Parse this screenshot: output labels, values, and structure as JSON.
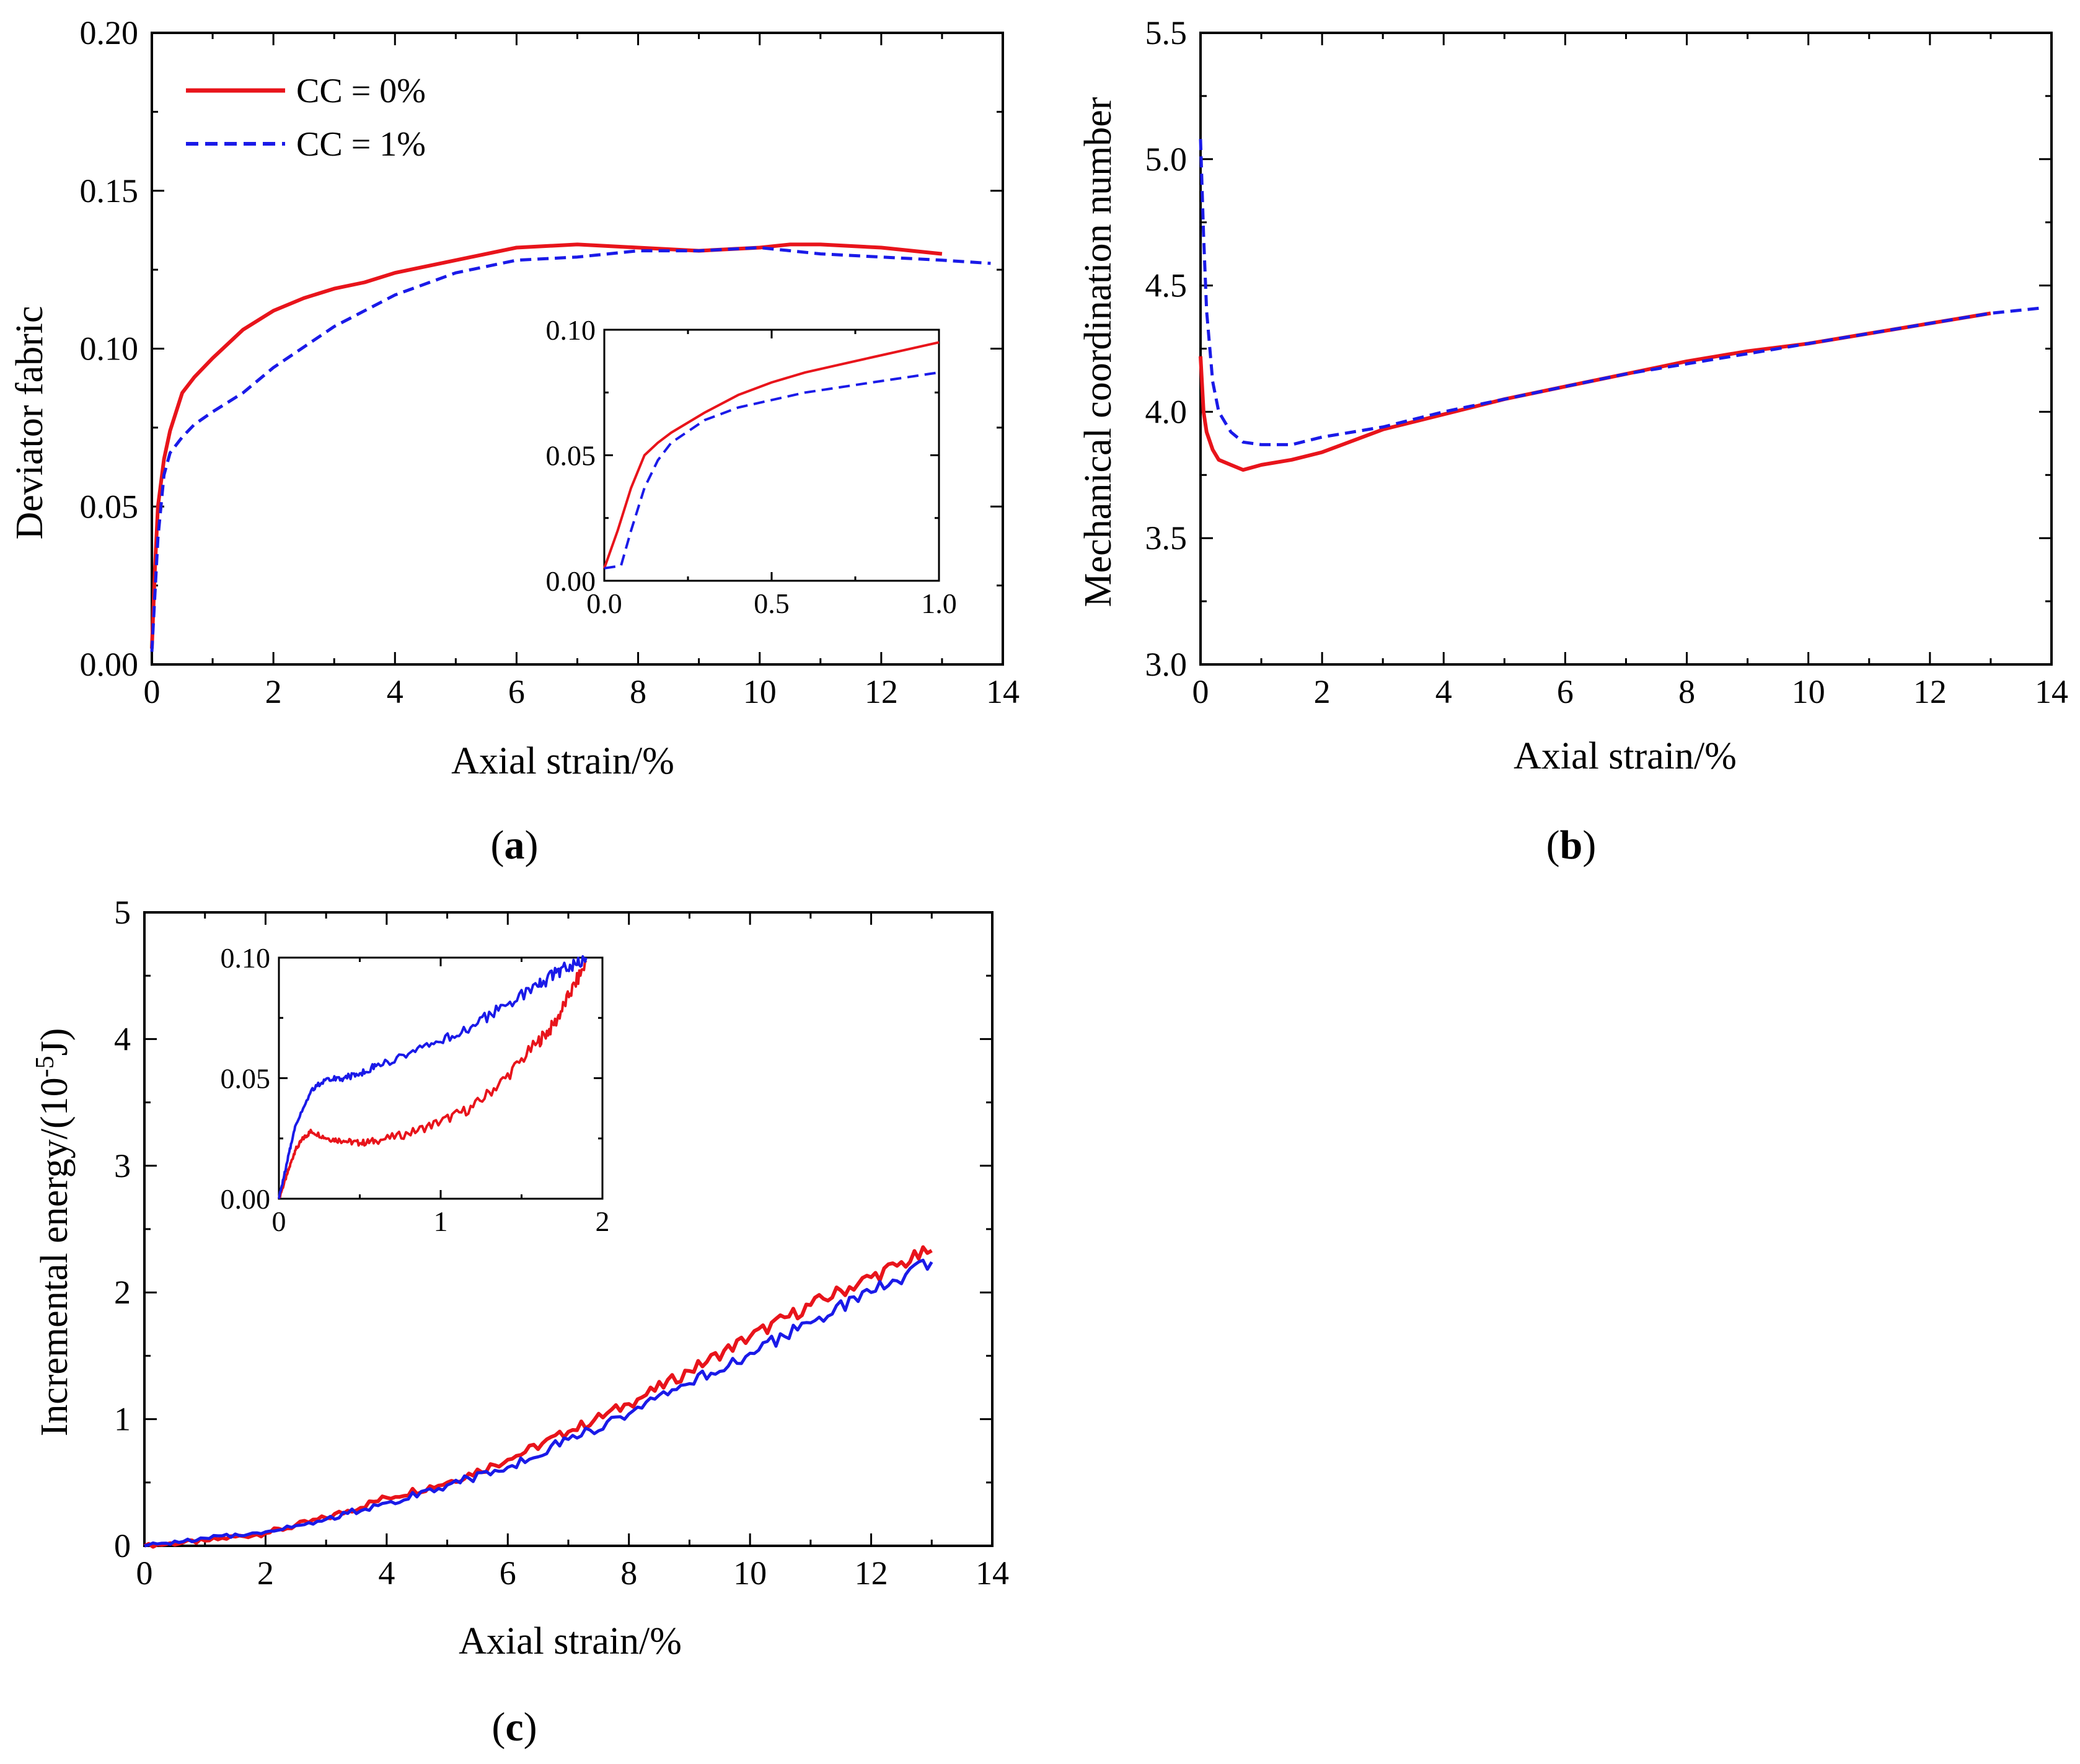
{
  "colors": {
    "cc0": "#e8141b",
    "cc1": "#1a1ae8",
    "axis": "#000000"
  },
  "legend": {
    "cc0_label": "CC = 0%",
    "cc1_label": "CC = 1%"
  },
  "panels": {
    "a": {
      "label_open": "(",
      "label_letter": "a",
      "label_close": ")"
    },
    "b": {
      "label_open": "(",
      "label_letter": "b",
      "label_close": ")"
    },
    "c": {
      "label_open": "(",
      "label_letter": "c",
      "label_close": ")"
    }
  },
  "chart_data": [
    {
      "id": "a",
      "type": "line",
      "title": "",
      "xlabel": "Axial strain/%",
      "ylabel": "Deviator fabric",
      "xlim": [
        0,
        14
      ],
      "ylim": [
        0,
        0.2
      ],
      "xticks": [
        "0",
        "2",
        "4",
        "6",
        "8",
        "10",
        "12",
        "14"
      ],
      "yticks": [
        "0.00",
        "0.05",
        "0.10",
        "0.15",
        "0.20"
      ],
      "legend_position": "top-left",
      "series": [
        {
          "name": "CC = 0%",
          "style": "solid",
          "x": [
            0,
            0.05,
            0.1,
            0.2,
            0.3,
            0.4,
            0.5,
            0.7,
            1.0,
            1.5,
            2.0,
            2.5,
            3.0,
            3.5,
            4.0,
            5.0,
            6.0,
            7.0,
            8.0,
            9.0,
            10.0,
            10.5,
            11.0,
            12.0,
            13.0
          ],
          "y": [
            0.005,
            0.03,
            0.05,
            0.065,
            0.074,
            0.08,
            0.086,
            0.091,
            0.097,
            0.106,
            0.112,
            0.116,
            0.119,
            0.121,
            0.124,
            0.128,
            0.132,
            0.133,
            0.132,
            0.131,
            0.132,
            0.133,
            0.133,
            0.132,
            0.13
          ]
        },
        {
          "name": "CC = 1%",
          "style": "dashed",
          "x": [
            0,
            0.1,
            0.2,
            0.3,
            0.5,
            0.7,
            1.0,
            1.5,
            2.0,
            3.0,
            4.0,
            5.0,
            6.0,
            7.0,
            8.0,
            9.0,
            10.0,
            11.0,
            12.0,
            13.0,
            13.8
          ],
          "y": [
            0.004,
            0.04,
            0.06,
            0.067,
            0.072,
            0.076,
            0.08,
            0.086,
            0.094,
            0.107,
            0.117,
            0.124,
            0.128,
            0.129,
            0.131,
            0.131,
            0.132,
            0.13,
            0.129,
            0.128,
            0.127
          ]
        }
      ],
      "inset": {
        "xlim": [
          0,
          1.0
        ],
        "ylim": [
          0,
          0.1
        ],
        "xticks": [
          "0.0",
          "0.5",
          "1.0"
        ],
        "yticks": [
          "0.00",
          "0.05",
          "0.10"
        ],
        "series": [
          {
            "name": "CC = 0%",
            "style": "solid",
            "x": [
              0,
              0.04,
              0.08,
              0.12,
              0.16,
              0.2,
              0.3,
              0.4,
              0.5,
              0.6,
              0.7,
              0.8,
              0.9,
              1.0
            ],
            "y": [
              0.005,
              0.02,
              0.037,
              0.05,
              0.055,
              0.059,
              0.067,
              0.074,
              0.079,
              0.083,
              0.086,
              0.089,
              0.092,
              0.095
            ]
          },
          {
            "name": "CC = 1%",
            "style": "dashed",
            "x": [
              0,
              0.05,
              0.08,
              0.12,
              0.16,
              0.2,
              0.3,
              0.4,
              0.5,
              0.6,
              0.7,
              0.8,
              0.9,
              1.0
            ],
            "y": [
              0.005,
              0.006,
              0.02,
              0.037,
              0.048,
              0.055,
              0.064,
              0.069,
              0.072,
              0.075,
              0.077,
              0.079,
              0.081,
              0.083
            ]
          }
        ]
      }
    },
    {
      "id": "b",
      "type": "line",
      "title": "",
      "xlabel": "Axial strain/%",
      "ylabel": "Mechanical coordination number",
      "xlim": [
        0,
        14
      ],
      "ylim": [
        3.0,
        5.5
      ],
      "xticks": [
        "0",
        "2",
        "4",
        "6",
        "8",
        "10",
        "12",
        "14"
      ],
      "yticks": [
        "3.0",
        "3.5",
        "4.0",
        "4.5",
        "5.0",
        "5.5"
      ],
      "series": [
        {
          "name": "CC = 0%",
          "style": "solid",
          "x": [
            0,
            0.05,
            0.1,
            0.2,
            0.3,
            0.5,
            0.7,
            1.0,
            1.5,
            2.0,
            3.0,
            4.0,
            5.0,
            6.0,
            7.0,
            8.0,
            9.0,
            10.0,
            11.0,
            12.0,
            13.0
          ],
          "y": [
            4.22,
            4.0,
            3.92,
            3.85,
            3.81,
            3.79,
            3.77,
            3.79,
            3.81,
            3.84,
            3.93,
            3.99,
            4.05,
            4.1,
            4.15,
            4.2,
            4.24,
            4.27,
            4.31,
            4.35,
            4.39
          ]
        },
        {
          "name": "CC = 1%",
          "style": "dashed",
          "x": [
            0,
            0.05,
            0.1,
            0.2,
            0.3,
            0.5,
            0.7,
            1.0,
            1.5,
            2.0,
            3.0,
            4.0,
            5.0,
            6.0,
            7.0,
            8.0,
            9.0,
            10.0,
            11.0,
            12.0,
            13.0,
            13.8
          ],
          "y": [
            5.08,
            4.7,
            4.4,
            4.12,
            4.0,
            3.92,
            3.88,
            3.87,
            3.87,
            3.9,
            3.94,
            4.0,
            4.05,
            4.1,
            4.15,
            4.19,
            4.23,
            4.27,
            4.31,
            4.35,
            4.39,
            4.41
          ]
        }
      ]
    },
    {
      "id": "c",
      "type": "line",
      "title": "",
      "xlabel": "Axial strain/%",
      "ylabel": "Incremental energy/(10",
      "ylabel_sup": "-5",
      "ylabel_tail": "J)",
      "xlim": [
        0,
        14
      ],
      "ylim": [
        0,
        5
      ],
      "xticks": [
        "0",
        "2",
        "4",
        "6",
        "8",
        "10",
        "12",
        "14"
      ],
      "yticks": [
        "0",
        "1",
        "2",
        "3",
        "4",
        "5"
      ],
      "series": [
        {
          "name": "CC = 0%",
          "style": "solid",
          "x": [
            0,
            1,
            2,
            3,
            4,
            5,
            6,
            7,
            8,
            9,
            10,
            11,
            12,
            13
          ],
          "y": [
            0.0,
            0.04,
            0.1,
            0.22,
            0.38,
            0.5,
            0.68,
            0.9,
            1.12,
            1.38,
            1.65,
            1.9,
            2.12,
            2.33
          ]
        },
        {
          "name": "CC = 1%",
          "style": "dashed",
          "x": [
            0,
            1,
            2,
            3,
            4,
            5,
            6,
            7,
            8,
            9,
            10,
            11,
            12,
            13
          ],
          "y": [
            0.0,
            0.06,
            0.11,
            0.21,
            0.34,
            0.48,
            0.62,
            0.84,
            1.04,
            1.28,
            1.52,
            1.76,
            2.0,
            2.24
          ]
        }
      ],
      "inset": {
        "xlim": [
          0,
          2
        ],
        "ylim": [
          0,
          0.1
        ],
        "xticks": [
          "0",
          "1",
          "2"
        ],
        "yticks": [
          "0.00",
          "0.05",
          "0.10"
        ],
        "series": [
          {
            "name": "CC = 0%",
            "style": "solid",
            "x": [
              0,
              0.05,
              0.1,
              0.15,
              0.2,
              0.3,
              0.4,
              0.5,
              0.6,
              0.8,
              1.0,
              1.2,
              1.4,
              1.6,
              1.7,
              1.8,
              1.9
            ],
            "y": [
              0.0,
              0.01,
              0.02,
              0.025,
              0.028,
              0.025,
              0.024,
              0.023,
              0.024,
              0.027,
              0.032,
              0.038,
              0.05,
              0.065,
              0.072,
              0.085,
              0.098
            ]
          },
          {
            "name": "CC = 1%",
            "style": "dashed",
            "x": [
              0,
              0.05,
              0.1,
              0.2,
              0.3,
              0.4,
              0.5,
              0.6,
              0.8,
              1.0,
              1.2,
              1.4,
              1.6,
              1.7,
              1.8,
              1.9
            ],
            "y": [
              0.0,
              0.015,
              0.03,
              0.045,
              0.05,
              0.05,
              0.052,
              0.055,
              0.06,
              0.065,
              0.072,
              0.08,
              0.088,
              0.093,
              0.097,
              0.1
            ]
          }
        ]
      }
    }
  ]
}
